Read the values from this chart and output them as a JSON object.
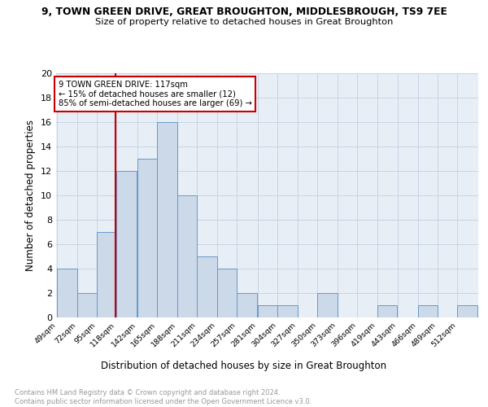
{
  "title1": "9, TOWN GREEN DRIVE, GREAT BROUGHTON, MIDDLESBROUGH, TS9 7EE",
  "title2": "Size of property relative to detached houses in Great Broughton",
  "xlabel": "Distribution of detached houses by size in Great Broughton",
  "ylabel": "Number of detached properties",
  "footer1": "Contains HM Land Registry data © Crown copyright and database right 2024.",
  "footer2": "Contains public sector information licensed under the Open Government Licence v3.0.",
  "annotation_line1": "9 TOWN GREEN DRIVE: 117sqm",
  "annotation_line2": "← 15% of detached houses are smaller (12)",
  "annotation_line3": "85% of semi-detached houses are larger (69) →",
  "property_size": 117,
  "bar_edges": [
    49,
    72,
    95,
    118,
    142,
    165,
    188,
    211,
    234,
    257,
    281,
    304,
    327,
    350,
    373,
    396,
    419,
    443,
    466,
    489,
    512
  ],
  "bar_heights": [
    4,
    2,
    7,
    12,
    13,
    16,
    10,
    5,
    4,
    2,
    1,
    1,
    0,
    2,
    0,
    0,
    1,
    0,
    1,
    0,
    1
  ],
  "bar_color": "#ccd9e8",
  "bar_edge_color": "#6699cc",
  "vline_color": "#cc0000",
  "vline_x": 117,
  "ylim": [
    0,
    20
  ],
  "yticks": [
    0,
    2,
    4,
    6,
    8,
    10,
    12,
    14,
    16,
    18,
    20
  ],
  "annotation_box_color": "#ffffff",
  "annotation_box_edge": "#cc0000",
  "grid_color": "#c8d4e4",
  "bg_color": "#e8eef6"
}
